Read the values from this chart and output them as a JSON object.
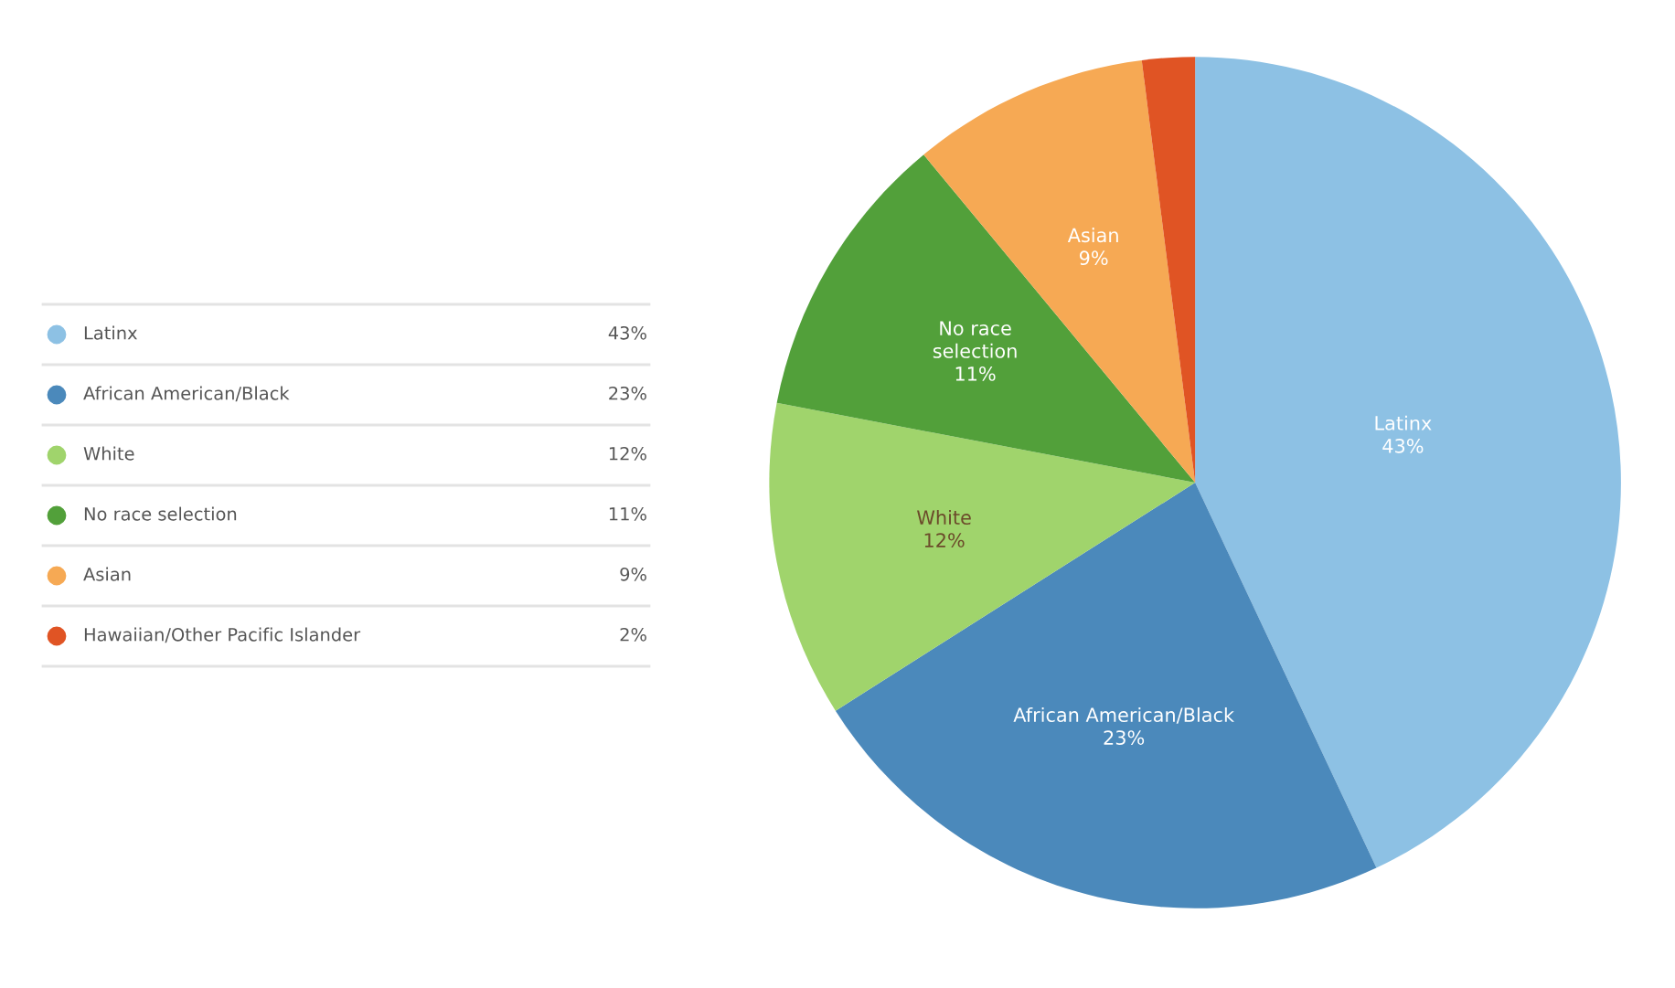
{
  "chart_data": {
    "type": "pie",
    "categories": [
      "Latinx",
      "African American/Black",
      "White",
      "No race selection",
      "Asian",
      "Hawaiian/Other Pacific Islander"
    ],
    "values": [
      43,
      23,
      12,
      11,
      9,
      2
    ],
    "colors": [
      "#8dc1e4",
      "#4b89bb",
      "#a0d46c",
      "#52a03a",
      "#f6a954",
      "#e05424"
    ],
    "value_labels": [
      "43%",
      "23%",
      "12%",
      "11%",
      "9%",
      "2%"
    ],
    "legend": "left"
  }
}
